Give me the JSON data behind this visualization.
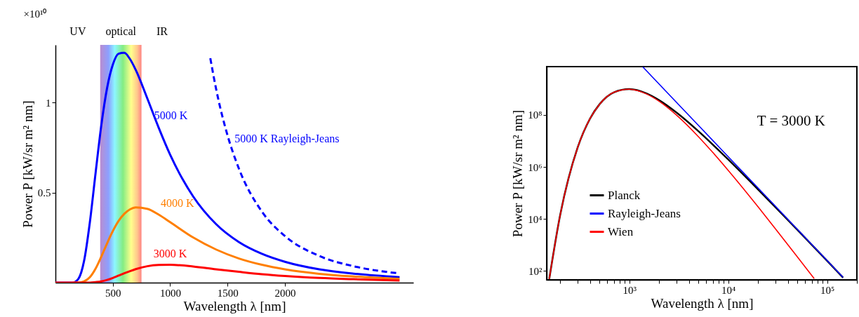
{
  "chart_data": [
    {
      "type": "line",
      "xlabel": "Wavelength λ [nm]",
      "ylabel": "Power P [kW/sr m² nm]",
      "xlim": [
        0,
        3120
      ],
      "ylim": [
        0,
        1.32
      ],
      "xticks": [
        500,
        1000,
        1500,
        2000
      ],
      "yticks": [
        0.5,
        1
      ],
      "legend": false,
      "annotations": [
        "×10¹⁰",
        "UV",
        "IR"
      ],
      "bands": [
        {
          "axis": "x",
          "from": 390,
          "to": 750,
          "label": "optical"
        }
      ],
      "series": [
        {
          "name": "5000 K",
          "color": "#0000ff",
          "x": [
            0,
            100,
            150,
            200,
            250,
            300,
            350,
            400,
            450,
            500,
            550,
            600,
            650,
            700,
            800,
            900,
            1000,
            1200,
            1400,
            1600,
            1800,
            2000,
            2300,
            2600,
            3000
          ],
          "values": [
            0,
            0,
            0,
            0.021,
            0.122,
            0.335,
            0.609,
            0.874,
            1.08,
            1.21,
            1.271,
            1.276,
            1.241,
            1.181,
            1.024,
            0.86,
            0.71,
            0.479,
            0.325,
            0.225,
            0.16,
            0.116,
            0.074,
            0.05,
            0.03
          ]
        },
        {
          "name": "4000 K",
          "color": "#ff7f00",
          "x": [
            150,
            200,
            250,
            300,
            350,
            400,
            450,
            500,
            550,
            600,
            650,
            700,
            800,
            900,
            1000,
            1200,
            1400,
            1600,
            1800,
            2000,
            2300,
            2600,
            3000
          ],
          "values": [
            0,
            0,
            0.007,
            0.03,
            0.078,
            0.145,
            0.218,
            0.286,
            0.342,
            0.382,
            0.407,
            0.418,
            0.41,
            0.378,
            0.336,
            0.251,
            0.184,
            0.134,
            0.099,
            0.074,
            0.049,
            0.034,
            0.021
          ]
        },
        {
          "name": "3000 K",
          "color": "#ff0000",
          "x": [
            0,
            100,
            150,
            200,
            250,
            300,
            350,
            400,
            450,
            500,
            550,
            600,
            650,
            700,
            800,
            900,
            1000,
            1200,
            1400,
            1600,
            1800,
            2000,
            2300,
            2600,
            3000
          ],
          "values": [
            0,
            0,
            0,
            0,
            0,
            0,
            0.003,
            0.007,
            0.015,
            0.026,
            0.039,
            0.052,
            0.064,
            0.075,
            0.091,
            0.098,
            0.099,
            0.09,
            0.074,
            0.06,
            0.047,
            0.037,
            0.026,
            0.019,
            0.012
          ]
        },
        {
          "name": "5000 K Rayleigh-Jeans",
          "color": "#0000ff",
          "line_style": "dashed",
          "x": [
            1350,
            1400,
            1500,
            1600,
            1800,
            2000,
            2300,
            2600,
            3000
          ],
          "values": [
            1.246,
            1.077,
            0.818,
            0.632,
            0.394,
            0.259,
            0.148,
            0.091,
            0.051
          ]
        }
      ]
    },
    {
      "type": "line",
      "xlabel": "Wavelength λ [nm]",
      "ylabel": "Power P [kW/sr m² nm]",
      "log": "xy",
      "xlim": [
        146,
        200000
      ],
      "ylim": [
        45,
        7300000000
      ],
      "xticks": [
        {
          "value": 200,
          "label": null
        },
        {
          "value": 300,
          "label": null
        },
        {
          "value": 400,
          "label": null
        },
        {
          "value": 500,
          "label": null
        },
        {
          "value": 600,
          "label": null
        },
        {
          "value": 700,
          "label": null
        },
        {
          "value": 800,
          "label": null
        },
        {
          "value": 900,
          "label": null
        },
        {
          "value": 1000,
          "label": "10³"
        },
        {
          "value": 2000,
          "label": null
        },
        {
          "value": 3000,
          "label": null
        },
        {
          "value": 4000,
          "label": null
        },
        {
          "value": 5000,
          "label": null
        },
        {
          "value": 6000,
          "label": null
        },
        {
          "value": 7000,
          "label": null
        },
        {
          "value": 8000,
          "label": null
        },
        {
          "value": 9000,
          "label": null
        },
        {
          "value": 10000,
          "label": "10⁴"
        },
        {
          "value": 20000,
          "label": null
        },
        {
          "value": 30000,
          "label": null
        },
        {
          "value": 40000,
          "label": null
        },
        {
          "value": 50000,
          "label": null
        },
        {
          "value": 60000,
          "label": null
        },
        {
          "value": 70000,
          "label": null
        },
        {
          "value": 80000,
          "label": null
        },
        {
          "value": 90000,
          "label": null
        },
        {
          "value": 100000,
          "label": "10⁵"
        },
        {
          "value": 200000,
          "label": null
        }
      ],
      "yticks": [
        {
          "value": 100,
          "label": "10²"
        },
        {
          "value": 10000,
          "label": "10⁴"
        },
        {
          "value": 1000000,
          "label": "10⁶"
        },
        {
          "value": 100000000,
          "label": "10⁸"
        }
      ],
      "legend": "bottom left",
      "annotations": [
        "T = 3000 K"
      ],
      "series": [
        {
          "name": "Planck",
          "color": "#000000",
          "x": [
            155,
            200,
            300,
            400,
            500,
            700,
            1000,
            1500,
            2000,
            3000,
            5000,
            7000,
            10000,
            20000,
            30000,
            50000,
            70000,
            100000,
            145000
          ],
          "values": [
            48.6,
            14300,
            5570000,
            72200000,
            260000000,
            751000000,
            993000000,
            669000000,
            372000000,
            124000000,
            23700000,
            7200000,
            1940000,
            137000,
            28300,
            3790,
            999,
            242,
            55
          ]
        },
        {
          "name": "Rayleigh-Jeans",
          "color": "#0000ff",
          "x": [
            1370,
            3000,
            10000,
            30000,
            100000,
            145000
          ],
          "values": [
            7050000000,
            307000000,
            2480000,
            30700,
            248,
            56.2
          ]
        },
        {
          "name": "Wien",
          "color": "#ff0000",
          "x": [
            155,
            200,
            300,
            400,
            500,
            700,
            1000,
            1500,
            2000,
            3000,
            5000,
            7000,
            10000,
            20000,
            30000,
            50000,
            74000
          ],
          "values": [
            48.6,
            14300,
            5570000,
            72200000,
            260000000,
            750000000,
            985000000,
            641000000,
            338000000,
            99100000,
            14600000,
            3570000,
            737000,
            29300,
            4180,
            346,
            50.3
          ]
        }
      ]
    }
  ]
}
